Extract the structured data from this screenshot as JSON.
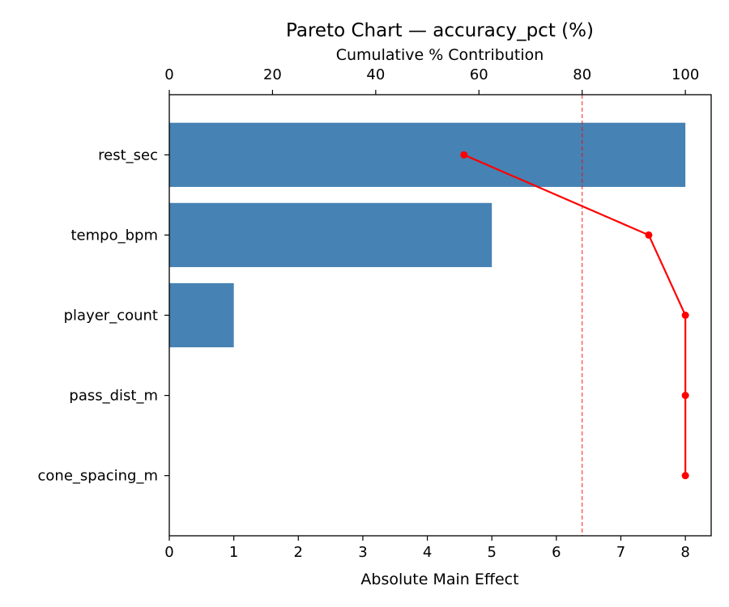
{
  "chart_data": {
    "type": "bar",
    "orientation": "horizontal",
    "title": "Pareto Chart — accuracy_pct (%)",
    "xlabel": "Absolute Main Effect",
    "secondary_xlabel": "Cumulative % Contribution",
    "categories": [
      "rest_sec",
      "tempo_bpm",
      "player_count",
      "pass_dist_m",
      "cone_spacing_m"
    ],
    "series": [
      {
        "values": [
          8.0,
          5.0,
          1.0,
          0.0,
          0.0
        ],
        "color": "#4682b4",
        "kind": "bar",
        "axis": "bottom"
      },
      {
        "values": [
          57.1,
          92.9,
          100.0,
          100.0,
          100.0
        ],
        "color": "#ff0000",
        "kind": "line",
        "axis": "top"
      }
    ],
    "xlim": [
      0,
      8.4
    ],
    "secondary_xlim": [
      0,
      105
    ],
    "xticks": [
      "0",
      "1",
      "2",
      "3",
      "4",
      "5",
      "6",
      "7",
      "8"
    ],
    "secondary_xticks": [
      "0",
      "20",
      "40",
      "60",
      "80",
      "100"
    ],
    "reference_line": {
      "axis": "top",
      "value": 80,
      "style": "dashed",
      "color": "#ff0000"
    },
    "grid": false
  }
}
